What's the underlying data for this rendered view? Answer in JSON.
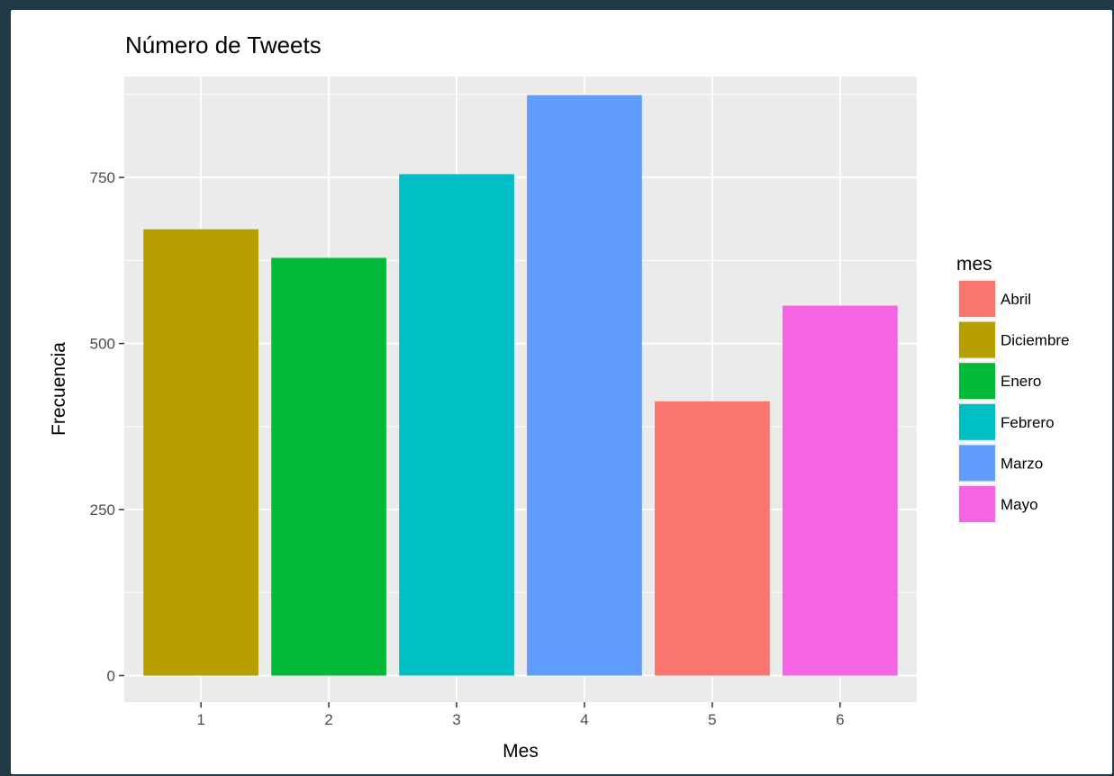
{
  "chart_data": {
    "type": "bar",
    "title": "Número de Tweets",
    "xlabel": "Mes",
    "ylabel": "Frecuencia",
    "x_ticks": [
      "1",
      "2",
      "3",
      "4",
      "5",
      "6"
    ],
    "y_ticks": [
      0,
      250,
      500,
      750
    ],
    "ylim": [
      -40,
      902
    ],
    "xlim": [
      0.4,
      6.6
    ],
    "bar_width": 0.9,
    "grid": true,
    "legend_position": "right",
    "legend_title": "mes",
    "legend": [
      {
        "label": "Abril",
        "color": "#F8766D"
      },
      {
        "label": "Diciembre",
        "color": "#B79F00"
      },
      {
        "label": "Enero",
        "color": "#00BA38"
      },
      {
        "label": "Febrero",
        "color": "#00BFC4"
      },
      {
        "label": "Marzo",
        "color": "#619CFF"
      },
      {
        "label": "Mayo",
        "color": "#F564E3"
      }
    ],
    "bars": [
      {
        "x": 1,
        "value": 672,
        "mes": "Diciembre"
      },
      {
        "x": 2,
        "value": 629,
        "mes": "Enero"
      },
      {
        "x": 3,
        "value": 755,
        "mes": "Febrero"
      },
      {
        "x": 4,
        "value": 874,
        "mes": "Marzo"
      },
      {
        "x": 5,
        "value": 413,
        "mes": "Abril"
      },
      {
        "x": 6,
        "value": 557,
        "mes": "Mayo"
      }
    ],
    "panel_color": "#EBEBEB",
    "grid_color": "#FFFFFF"
  }
}
